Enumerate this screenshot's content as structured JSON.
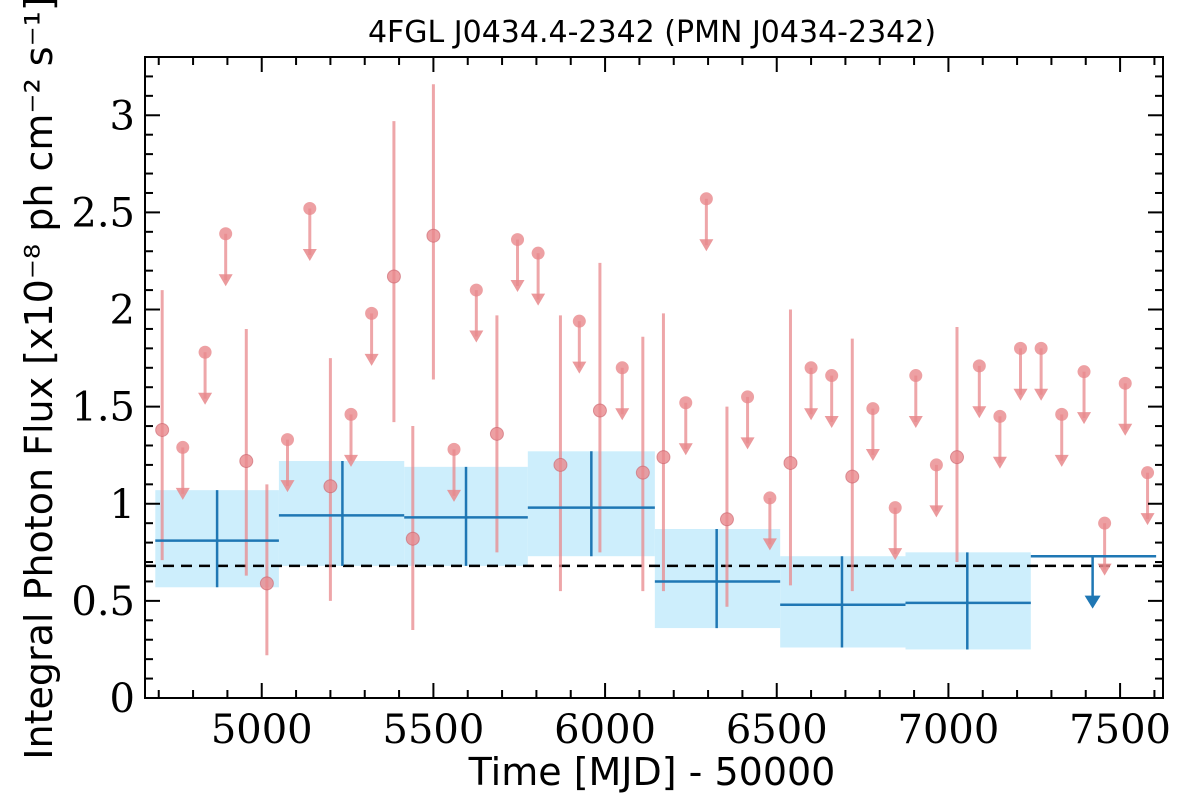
{
  "chart_data": {
    "type": "scatter",
    "title": "4FGL J0434.4-2342 (PMN J0434-2342)",
    "xlabel": "Time [MJD] - 50000",
    "ylabel": "Integral Photon Flux [x10⁻⁸ ph cm⁻² s⁻¹]",
    "xlim": [
      4660,
      7625
    ],
    "ylim": [
      0,
      3.3
    ],
    "xticks": [
      5000,
      5500,
      6000,
      6500,
      7000,
      7500
    ],
    "xtick_labels": [
      "5000",
      "5500",
      "6000",
      "6500",
      "7000",
      "7500"
    ],
    "yticks": [
      0,
      0.5,
      1,
      1.5,
      2,
      2.5,
      3
    ],
    "ytick_labels": [
      "0",
      "0.5",
      "1",
      "1.5",
      "2",
      "2.5",
      "3"
    ],
    "grid": false,
    "mean_flux": 0.68,
    "colors": {
      "short_bins": "#e8888c",
      "long_bins": "#1f77b4",
      "long_bins_band": "#cdeefc",
      "mean_line": "#000000"
    },
    "series": [
      {
        "detections": [
          {
            "x": 4710,
            "y": 1.38,
            "lo": 0.71,
            "hi": 2.1
          },
          {
            "x": 4955,
            "y": 1.22,
            "lo": 0.63,
            "hi": 1.9
          },
          {
            "x": 5015,
            "y": 0.59,
            "lo": 0.22,
            "hi": 1.1
          },
          {
            "x": 5200,
            "y": 1.09,
            "lo": 0.5,
            "hi": 1.75
          },
          {
            "x": 5385,
            "y": 2.17,
            "lo": 1.42,
            "hi": 2.97
          },
          {
            "x": 5440,
            "y": 0.82,
            "lo": 0.35,
            "hi": 1.4
          },
          {
            "x": 5500,
            "y": 2.38,
            "lo": 1.64,
            "hi": 3.16
          },
          {
            "x": 5685,
            "y": 1.36,
            "lo": 0.75,
            "hi": 1.97
          },
          {
            "x": 5870,
            "y": 1.2,
            "lo": 0.55,
            "hi": 1.97
          },
          {
            "x": 5985,
            "y": 1.48,
            "lo": 0.75,
            "hi": 2.24
          },
          {
            "x": 6110,
            "y": 1.16,
            "lo": 0.55,
            "hi": 1.86
          },
          {
            "x": 6170,
            "y": 1.24,
            "lo": 0.55,
            "hi": 1.98
          },
          {
            "x": 6355,
            "y": 0.92,
            "lo": 0.47,
            "hi": 1.5
          },
          {
            "x": 6540,
            "y": 1.21,
            "lo": 0.58,
            "hi": 2.0
          },
          {
            "x": 6720,
            "y": 1.14,
            "lo": 0.55,
            "hi": 1.85
          },
          {
            "x": 7025,
            "y": 1.24,
            "lo": 0.7,
            "hi": 1.91
          }
        ],
        "upper_limits": [
          {
            "x": 4770,
            "y": 1.29
          },
          {
            "x": 4835,
            "y": 1.78
          },
          {
            "x": 4895,
            "y": 2.39
          },
          {
            "x": 5075,
            "y": 1.33
          },
          {
            "x": 5140,
            "y": 2.52
          },
          {
            "x": 5260,
            "y": 1.46
          },
          {
            "x": 5320,
            "y": 1.98
          },
          {
            "x": 5560,
            "y": 1.28
          },
          {
            "x": 5625,
            "y": 2.1
          },
          {
            "x": 5745,
            "y": 2.36
          },
          {
            "x": 5805,
            "y": 2.29
          },
          {
            "x": 5925,
            "y": 1.94
          },
          {
            "x": 6050,
            "y": 1.7
          },
          {
            "x": 6235,
            "y": 1.52
          },
          {
            "x": 6295,
            "y": 2.57
          },
          {
            "x": 6415,
            "y": 1.55
          },
          {
            "x": 6480,
            "y": 1.03
          },
          {
            "x": 6600,
            "y": 1.7
          },
          {
            "x": 6660,
            "y": 1.66
          },
          {
            "x": 6780,
            "y": 1.49
          },
          {
            "x": 6845,
            "y": 0.98
          },
          {
            "x": 6905,
            "y": 1.66
          },
          {
            "x": 6965,
            "y": 1.2
          },
          {
            "x": 7090,
            "y": 1.71
          },
          {
            "x": 7150,
            "y": 1.45
          },
          {
            "x": 7210,
            "y": 1.8
          },
          {
            "x": 7270,
            "y": 1.8
          },
          {
            "x": 7330,
            "y": 1.46
          },
          {
            "x": 7395,
            "y": 1.68
          },
          {
            "x": 7455,
            "y": 0.9
          },
          {
            "x": 7515,
            "y": 1.62
          },
          {
            "x": 7580,
            "y": 1.16
          }
        ]
      },
      {
        "detections": [
          {
            "x": 4870,
            "xlo": 4690,
            "xhi": 5050,
            "y": 0.81,
            "lo": 0.57,
            "hi": 1.07
          },
          {
            "x": 5235,
            "xlo": 5050,
            "xhi": 5415,
            "y": 0.94,
            "lo": 0.68,
            "hi": 1.22
          },
          {
            "x": 5595,
            "xlo": 5415,
            "xhi": 5775,
            "y": 0.93,
            "lo": 0.68,
            "hi": 1.19
          },
          {
            "x": 5960,
            "xlo": 5775,
            "xhi": 6145,
            "y": 0.98,
            "lo": 0.73,
            "hi": 1.27
          },
          {
            "x": 6325,
            "xlo": 6145,
            "xhi": 6510,
            "y": 0.6,
            "lo": 0.36,
            "hi": 0.87
          },
          {
            "x": 6690,
            "xlo": 6510,
            "xhi": 6875,
            "y": 0.48,
            "lo": 0.26,
            "hi": 0.73
          },
          {
            "x": 7055,
            "xlo": 6875,
            "xhi": 7240,
            "y": 0.49,
            "lo": 0.25,
            "hi": 0.75
          }
        ],
        "upper_limits": [
          {
            "x": 7420,
            "xlo": 7240,
            "xhi": 7605,
            "y": 0.73
          }
        ]
      }
    ]
  }
}
